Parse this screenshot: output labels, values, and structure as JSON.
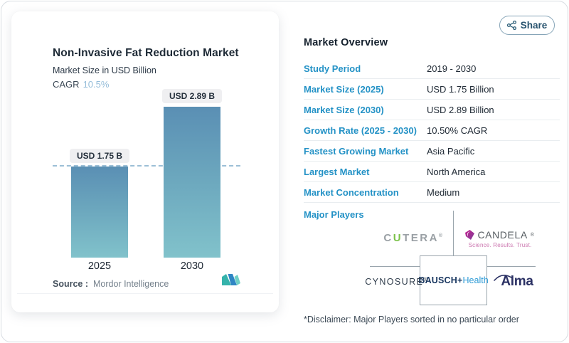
{
  "share": {
    "label": "Share"
  },
  "chart_data": {
    "type": "bar",
    "title": "Non-Invasive Fat Reduction Market",
    "subtitle": "Market Size in USD Billion",
    "cagr_label": "CAGR",
    "cagr_value": "10.5%",
    "categories": [
      "2025",
      "2030"
    ],
    "values": [
      1.75,
      2.89
    ],
    "bar_labels": [
      "USD 1.75 B",
      "USD 2.89 B"
    ],
    "ylabel": "USD Billion",
    "ylim": [
      0,
      2.89
    ],
    "grid": false,
    "reference_line_at": 1.75,
    "legend": "none",
    "source_label": "Source :",
    "source_value": "Mordor Intelligence"
  },
  "overview": {
    "title": "Market Overview",
    "rows": [
      {
        "label": "Study Period",
        "value": "2019 - 2030"
      },
      {
        "label": "Market Size (2025)",
        "value": "USD 1.75 Billion"
      },
      {
        "label": "Market Size (2030)",
        "value": "USD 2.89 Billion"
      },
      {
        "label": "Growth Rate (2025 - 2030)",
        "value": "10.50% CAGR"
      },
      {
        "label": "Fastest Growing Market",
        "value": "Asia Pacific"
      },
      {
        "label": "Largest Market",
        "value": "North America"
      },
      {
        "label": "Market Concentration",
        "value": "Medium"
      }
    ],
    "major_players_label": "Major Players",
    "disclaimer": "*Disclaimer: Major Players sorted in no particular order"
  },
  "players": {
    "cutera": {
      "prefix": "C",
      "green": "U",
      "suffix": "TERA",
      "reg": "®"
    },
    "candela": {
      "name": "CANDELA",
      "reg": "®",
      "tagline": "Science. Results. Trust."
    },
    "cynosure": {
      "name": "CYNOSURE",
      "reg": "®"
    },
    "bausch": {
      "bold": "BAUSCH+",
      "light": "Health"
    },
    "alma": {
      "name": "Alma"
    }
  },
  "colors": {
    "label_blue": "#2492c6",
    "cagr_light_blue": "#95bdd9",
    "bar_gradient_top": "#5a8fb4",
    "bar_gradient_bottom": "#81c2cb",
    "dashed_reference": "#9cbfd6",
    "badge_bg": "#efeff1",
    "cutera_green": "#7cc24a",
    "candela_magenta": "#b5228f",
    "bausch_navy": "#16345e",
    "bausch_blue": "#2e9bd6",
    "mordor_teal": "#35b3ab",
    "mordor_blue": "#2f86c4"
  }
}
